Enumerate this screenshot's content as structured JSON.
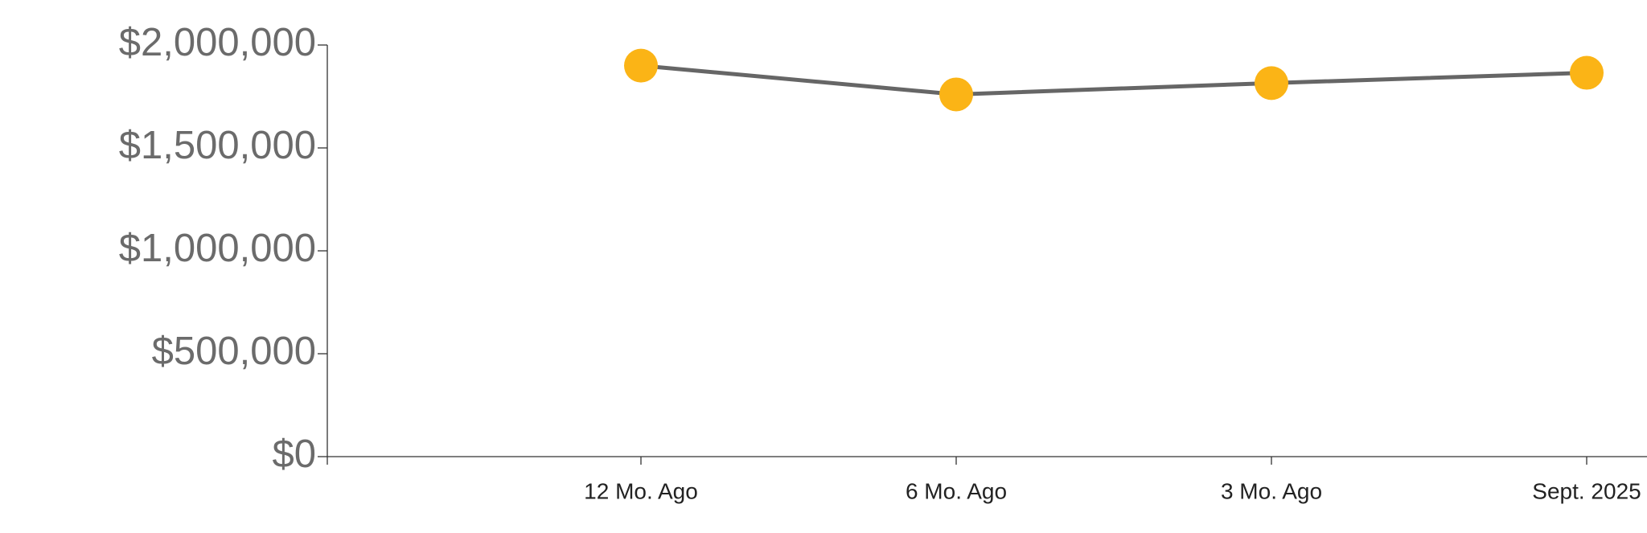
{
  "chart_data": {
    "type": "line",
    "categories": [
      "12 Mo. Ago",
      "6 Mo. Ago",
      "3 Mo. Ago",
      "Sept. 2025"
    ],
    "values": [
      1900000,
      1760000,
      1815000,
      1865000
    ],
    "color": "#fbb416",
    "line_color": "#666666",
    "ylim": [
      0,
      2000000
    ],
    "yticks": [
      {
        "value": 0,
        "label": "$0"
      },
      {
        "value": 500000,
        "label": "$500,000"
      },
      {
        "value": 1000000,
        "label": "$1,000,000"
      },
      {
        "value": 1500000,
        "label": "$1,500,000"
      },
      {
        "value": 2000000,
        "label": "$2,000,000"
      }
    ]
  }
}
